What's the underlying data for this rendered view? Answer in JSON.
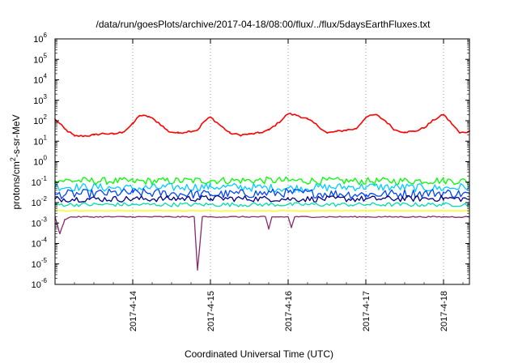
{
  "chart_data": {
    "type": "line",
    "title": "/data/run/goesPlots/archive/2017-04-18/08:00/flux/../flux/5daysEarthFluxes.txt",
    "xlabel": "Coordinated Universal Time (UTC)",
    "ylabel": "protons/cm²-s-sr-MeV",
    "ylabel_parts": {
      "pre": "protons/cm",
      "sup": "2",
      "post": "-s-sr-MeV"
    },
    "yscale": "log",
    "ylim_exp": [
      -6,
      6
    ],
    "y_ticks": [
      {
        "base": "10",
        "exp": "-6",
        "v": -6
      },
      {
        "base": "10",
        "exp": "-5",
        "v": -5
      },
      {
        "base": "10",
        "exp": "-4",
        "v": -4
      },
      {
        "base": "10",
        "exp": "-3",
        "v": -3
      },
      {
        "base": "10",
        "exp": "-2",
        "v": -2
      },
      {
        "base": "10",
        "exp": "-1",
        "v": -1
      },
      {
        "base": "10",
        "exp": "0",
        "v": 0
      },
      {
        "base": "10",
        "exp": "1",
        "v": 1
      },
      {
        "base": "10",
        "exp": "2",
        "v": 2
      },
      {
        "base": "10",
        "exp": "3",
        "v": 3
      },
      {
        "base": "10",
        "exp": "4",
        "v": 4
      },
      {
        "base": "10",
        "exp": "5",
        "v": 5
      },
      {
        "base": "10",
        "exp": "6",
        "v": 6
      }
    ],
    "xlim": [
      "2017-04-13 00:00",
      "2017-04-18 08:00"
    ],
    "x_ticks": [
      "2017-4-14",
      "2017-4-15",
      "2017-4-16",
      "2017-4-17",
      "2017-4-18"
    ],
    "grid": "vertical dotted at day boundaries",
    "series": [
      {
        "color": "#ff0000",
        "values": [
          [
            "2017-04-13 00:00",
            120
          ],
          [
            "2017-04-13 03:00",
            40
          ],
          [
            "2017-04-13 06:00",
            18
          ],
          [
            "2017-04-13 09:00",
            18
          ],
          [
            "2017-04-13 12:00",
            20
          ],
          [
            "2017-04-13 15:00",
            24
          ],
          [
            "2017-04-13 18:00",
            22
          ],
          [
            "2017-04-13 21:00",
            28
          ],
          [
            "2017-04-14 00:00",
            70
          ],
          [
            "2017-04-14 02:00",
            180
          ],
          [
            "2017-04-14 05:00",
            160
          ],
          [
            "2017-04-14 08:00",
            80
          ],
          [
            "2017-04-14 11:00",
            30
          ],
          [
            "2017-04-14 14:00",
            25
          ],
          [
            "2017-04-14 17:00",
            30
          ],
          [
            "2017-04-14 20:00",
            35
          ],
          [
            "2017-04-14 22:00",
            90
          ],
          [
            "2017-04-15 00:00",
            150
          ],
          [
            "2017-04-15 03:00",
            60
          ],
          [
            "2017-04-15 06:00",
            25
          ],
          [
            "2017-04-15 09:00",
            20
          ],
          [
            "2017-04-15 12:00",
            22
          ],
          [
            "2017-04-15 15:00",
            25
          ],
          [
            "2017-04-15 18:00",
            35
          ],
          [
            "2017-04-15 21:00",
            80
          ],
          [
            "2017-04-16 00:00",
            220
          ],
          [
            "2017-04-16 03:00",
            180
          ],
          [
            "2017-04-16 06:00",
            120
          ],
          [
            "2017-04-16 09:00",
            60
          ],
          [
            "2017-04-16 12:00",
            25
          ],
          [
            "2017-04-16 15:00",
            30
          ],
          [
            "2017-04-16 18:00",
            35
          ],
          [
            "2017-04-16 21:00",
            40
          ],
          [
            "2017-04-17 00:00",
            150
          ],
          [
            "2017-04-17 03:00",
            200
          ],
          [
            "2017-04-17 06:00",
            100
          ],
          [
            "2017-04-17 09:00",
            35
          ],
          [
            "2017-04-17 12:00",
            28
          ],
          [
            "2017-04-17 15:00",
            30
          ],
          [
            "2017-04-17 18:00",
            45
          ],
          [
            "2017-04-17 21:00",
            110
          ],
          [
            "2017-04-18 00:00",
            200
          ],
          [
            "2017-04-18 03:00",
            60
          ],
          [
            "2017-04-18 05:00",
            25
          ],
          [
            "2017-04-18 08:00",
            30
          ]
        ]
      },
      {
        "color": "#00ff00",
        "values": [
          [
            "2017-04-13 00:00",
            0.12
          ],
          [
            "2017-04-14 00:00",
            0.11
          ],
          [
            "2017-04-15 00:00",
            0.12
          ],
          [
            "2017-04-16 00:00",
            0.12
          ],
          [
            "2017-04-17 00:00",
            0.11
          ],
          [
            "2017-04-18 00:00",
            0.12
          ],
          [
            "2017-04-18 08:00",
            0.11
          ]
        ]
      },
      {
        "color": "#00ccff",
        "values": [
          [
            "2017-04-13 00:00",
            0.06
          ],
          [
            "2017-04-14 00:00",
            0.05
          ],
          [
            "2017-04-15 00:00",
            0.06
          ],
          [
            "2017-04-16 00:00",
            0.05
          ],
          [
            "2017-04-17 00:00",
            0.06
          ],
          [
            "2017-04-18 00:00",
            0.05
          ],
          [
            "2017-04-18 08:00",
            0.06
          ]
        ]
      },
      {
        "color": "#0044ff",
        "values": [
          [
            "2017-04-13 00:00",
            0.025
          ],
          [
            "2017-04-14 00:00",
            0.03
          ],
          [
            "2017-04-15 00:00",
            0.025
          ],
          [
            "2017-04-16 00:00",
            0.03
          ],
          [
            "2017-04-17 00:00",
            0.025
          ],
          [
            "2017-04-18 00:00",
            0.03
          ],
          [
            "2017-04-18 08:00",
            0.025
          ]
        ]
      },
      {
        "color": "#000088",
        "values": [
          [
            "2017-04-13 00:00",
            0.015
          ],
          [
            "2017-04-14 00:00",
            0.015
          ],
          [
            "2017-04-15 00:00",
            0.016
          ],
          [
            "2017-04-16 00:00",
            0.015
          ],
          [
            "2017-04-17 00:00",
            0.015
          ],
          [
            "2017-04-18 00:00",
            0.016
          ],
          [
            "2017-04-18 08:00",
            0.015
          ]
        ]
      },
      {
        "color": "#00ddaa",
        "values": [
          [
            "2017-04-13 00:00",
            0.008
          ],
          [
            "2017-04-14 00:00",
            0.008
          ],
          [
            "2017-04-15 00:00",
            0.008
          ],
          [
            "2017-04-16 00:00",
            0.008
          ],
          [
            "2017-04-17 00:00",
            0.008
          ],
          [
            "2017-04-18 00:00",
            0.008
          ],
          [
            "2017-04-18 08:00",
            0.008
          ]
        ]
      },
      {
        "color": "#ffff00",
        "values": [
          [
            "2017-04-13 00:00",
            0.004
          ],
          [
            "2017-04-14 00:00",
            0.004
          ],
          [
            "2017-04-15 00:00",
            0.004
          ],
          [
            "2017-04-16 00:00",
            0.004
          ],
          [
            "2017-04-17 00:00",
            0.004
          ],
          [
            "2017-04-18 00:00",
            0.004
          ],
          [
            "2017-04-18 08:00",
            0.004
          ]
        ]
      },
      {
        "color": "#8b2a6a",
        "values": [
          [
            "2017-04-13 00:00",
            0.002
          ],
          [
            "2017-04-13 01:30",
            0.0003
          ],
          [
            "2017-04-13 03:00",
            0.0015
          ],
          [
            "2017-04-13 05:00",
            0.002
          ],
          [
            "2017-04-14 00:00",
            0.002
          ],
          [
            "2017-04-14 19:00",
            0.002
          ],
          [
            "2017-04-14 20:00",
            5e-06
          ],
          [
            "2017-04-14 21:30",
            0.002
          ],
          [
            "2017-04-15 17:00",
            0.002
          ],
          [
            "2017-04-15 18:00",
            0.0005
          ],
          [
            "2017-04-15 19:00",
            0.002
          ],
          [
            "2017-04-16 00:00",
            0.002
          ],
          [
            "2017-04-16 01:00",
            0.0006
          ],
          [
            "2017-04-16 02:00",
            0.002
          ],
          [
            "2017-04-17 00:00",
            0.002
          ],
          [
            "2017-04-18 00:00",
            0.002
          ],
          [
            "2017-04-18 08:00",
            0.002
          ]
        ]
      }
    ]
  }
}
